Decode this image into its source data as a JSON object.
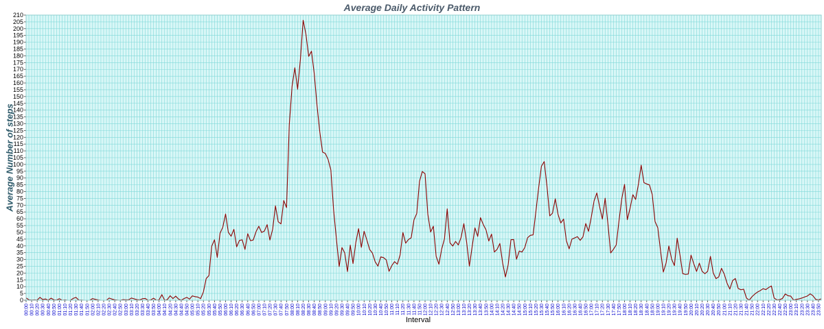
{
  "chart_data": {
    "type": "line",
    "title": "Average Daily Activity Pattern",
    "xlabel": "Interval",
    "ylabel": "Average Number of steps",
    "ylim": [
      0,
      210
    ],
    "ytick_step": 5,
    "grid": true,
    "colors": {
      "line": "#8b0000",
      "background": "#d9f7f7",
      "grid": "#7fd8d8",
      "xtick_text": "#0000cc"
    },
    "xtick_labels": [
      "00:00",
      "00:10",
      "00:20",
      "00:30",
      "00:40",
      "00:50",
      "01:00",
      "01:10",
      "01:20",
      "01:30",
      "01:40",
      "01:50",
      "02:00",
      "02:10",
      "02:20",
      "02:30",
      "02:40",
      "02:50",
      "03:00",
      "03:10",
      "03:20",
      "03:30",
      "03:40",
      "03:50",
      "04:00",
      "04:10",
      "04:20",
      "04:30",
      "04:40",
      "04:50",
      "05:00",
      "05:10",
      "05:20",
      "05:30",
      "05:40",
      "05:50",
      "06:00",
      "06:10",
      "06:20",
      "06:30",
      "06:40",
      "06:50",
      "07:00",
      "07:10",
      "07:20",
      "07:30",
      "07:40",
      "07:50",
      "08:00",
      "08:10",
      "08:20",
      "08:30",
      "08:40",
      "08:50",
      "09:00",
      "09:10",
      "09:20",
      "09:30",
      "09:40",
      "09:50",
      "10:00",
      "10:10",
      "10:20",
      "10:30",
      "10:40",
      "10:50",
      "11:00",
      "11:10",
      "11:20",
      "11:30",
      "11:40",
      "11:50",
      "12:00",
      "12:10",
      "12:20",
      "12:30",
      "12:40",
      "12:50",
      "13:00",
      "13:10",
      "13:20",
      "13:30",
      "13:40",
      "13:50",
      "14:00",
      "14:10",
      "14:20",
      "14:30",
      "14:40",
      "14:50",
      "15:00",
      "15:10",
      "15:20",
      "15:30",
      "15:40",
      "15:50",
      "16:00",
      "16:10",
      "16:20",
      "16:30",
      "16:40",
      "16:50",
      "17:00",
      "17:10",
      "17:20",
      "17:30",
      "17:40",
      "17:50",
      "18:00",
      "18:10",
      "18:20",
      "18:30",
      "18:40",
      "18:50",
      "19:00",
      "19:10",
      "19:20",
      "19:30",
      "19:40",
      "19:50",
      "20:00",
      "20:10",
      "20:20",
      "20:30",
      "20:40",
      "20:50",
      "21:00",
      "21:10",
      "21:20",
      "21:30",
      "21:40",
      "21:50",
      "22:00",
      "22:10",
      "22:20",
      "22:30",
      "22:40",
      "22:50",
      "23:00",
      "23:10",
      "23:20",
      "23:30",
      "23:40",
      "23:50"
    ],
    "series": [
      {
        "values": [
          1.7,
          0.3,
          0.1,
          0.2,
          0.1,
          2.1,
          0.5,
          0.9,
          0.0,
          1.5,
          0.3,
          0.1,
          1.1,
          0.0,
          0.2,
          0.0,
          0.0,
          1.3,
          2.1,
          0.1,
          0.1,
          0.0,
          0.0,
          0.0,
          1.2,
          0.6,
          0.2,
          0.0,
          0.0,
          0.0,
          1.6,
          0.8,
          0.3,
          0.1,
          0.0,
          0.4,
          0.3,
          0.3,
          1.6,
          1.0,
          0.4,
          0.2,
          1.1,
          1.3,
          0.0,
          0.2,
          1.5,
          0.0,
          0.3,
          4.1,
          0.0,
          0.5,
          3.3,
          1.2,
          3.0,
          0.9,
          0.0,
          1.2,
          2.1,
          0.8,
          3.2,
          2.6,
          2.3,
          1.2,
          6.1,
          15.9,
          18.2,
          39.8,
          44.5,
          31.5,
          49.3,
          53.8,
          63.5,
          50.0,
          47.1,
          52.2,
          39.3,
          44.0,
          44.5,
          37.4,
          49.0,
          43.8,
          44.4,
          50.5,
          54.5,
          49.9,
          50.9,
          55.7,
          44.3,
          52.3,
          69.5,
          57.8,
          56.2,
          73.4,
          68.2,
          129.4,
          157.5,
          171.2,
          155.4,
          177.3,
          206.2,
          195.9,
          179.6,
          183.4,
          167.0,
          143.5,
          124.0,
          109.1,
          108.1,
          103.7,
          95.9,
          66.2,
          45.2,
          24.8,
          38.8,
          34.8,
          21.1,
          40.6,
          27.0,
          42.4,
          52.7,
          38.9,
          50.8,
          44.3,
          37.4,
          34.7,
          28.3,
          25.1,
          31.9,
          31.4,
          29.7,
          21.3,
          25.5,
          28.4,
          26.5,
          33.4,
          49.9,
          42.0,
          44.7,
          46.0,
          59.2,
          63.9,
          87.6,
          94.8,
          93.1,
          63.4,
          50.2,
          54.5,
          32.4,
          26.5,
          37.7,
          45.1,
          67.3,
          42.3,
          39.9,
          43.3,
          40.7,
          46.2,
          56.4,
          42.8,
          25.1,
          39.5,
          53.3,
          47.0,
          60.8,
          55.8,
          51.8,
          43.6,
          48.7,
          35.5,
          37.5,
          41.8,
          27.5,
          17.1,
          26.1,
          44.6,
          44.7,
          30.2,
          36.2,
          35.5,
          38.8,
          46.0,
          47.8,
          48.1,
          65.3,
          82.9,
          98.7,
          102.1,
          84.0,
          62.1,
          64.1,
          74.7,
          63.2,
          56.9,
          59.8,
          43.9,
          37.8,
          45.0,
          45.9,
          46.8,
          44.1,
          46.7,
          56.5,
          50.7,
          61.2,
          73.1,
          79.0,
          68.9,
          59.7,
          75.1,
          56.3,
          34.8,
          37.5,
          40.7,
          58.5,
          74.7,
          85.3,
          59.3,
          67.8,
          77.7,
          74.2,
          85.3,
          99.5,
          86.6,
          85.6,
          84.9,
          77.8,
          58.0,
          53.4,
          36.3,
          20.7,
          27.4,
          40.0,
          30.2,
          25.5,
          45.7,
          33.5,
          19.6,
          19.0,
          19.3,
          33.2,
          26.8,
          21.2,
          27.3,
          21.3,
          19.5,
          21.3,
          32.3,
          20.2,
          15.9,
          17.2,
          23.5,
          19.2,
          12.5,
          8.2,
          14.4,
          16.0,
          8.7,
          7.7,
          8.1,
          1.6,
          0.0,
          2.6,
          4.5,
          6.0,
          7.1,
          8.5,
          7.8,
          9.3,
          10.5,
          1.6,
          0.2,
          0.4,
          1.3,
          4.6,
          3.3,
          3.0,
          0.1,
          0.6,
          1.0,
          1.6,
          2.4,
          3.1,
          4.7,
          3.3,
          0.6,
          0.2,
          1.1
        ]
      }
    ]
  }
}
